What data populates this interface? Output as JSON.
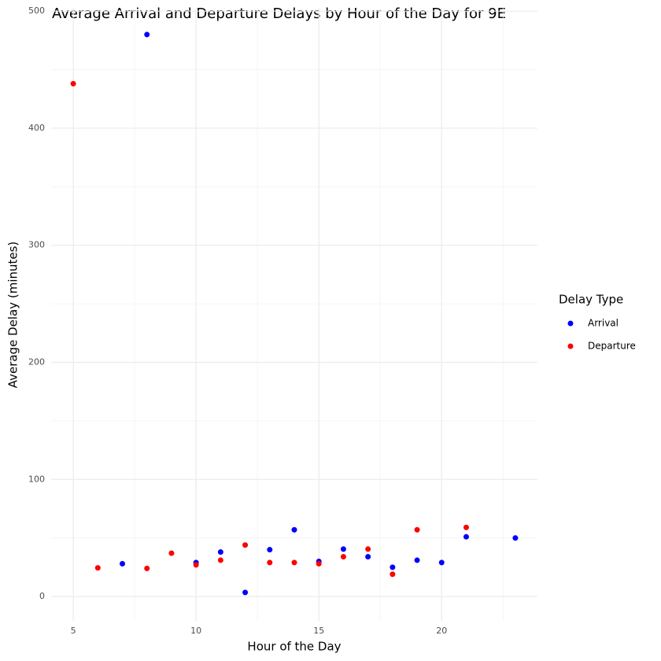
{
  "chart_data": {
    "type": "scatter",
    "title": "Average Arrival and Departure Delays by Hour of the Day for 9E",
    "x_label": "Hour of the Day",
    "y_label": "Average Delay (minutes)",
    "legend_title": "Delay Type",
    "legend_position": "right",
    "grid": true,
    "xlim": [
      4.1,
      23.9
    ],
    "xticks": [
      5,
      10,
      15,
      20
    ],
    "x_minor_ticks": [
      7.5,
      12.5,
      17.5,
      22.5
    ],
    "ylim": [
      -20.8,
      502.8
    ],
    "yticks": [
      0,
      100,
      200,
      300,
      400,
      500
    ],
    "y_minor_ticks": [
      50,
      150,
      250,
      350,
      450
    ],
    "series": [
      {
        "name": "Arrival",
        "color": "#0000ff",
        "x": [
          7,
          8,
          10,
          11,
          12,
          13,
          14,
          15,
          16,
          17,
          18,
          19,
          20,
          21,
          23
        ],
        "values": [
          28,
          480,
          29,
          38,
          3.5,
          40,
          57,
          30,
          40.5,
          34,
          25,
          31,
          29,
          51,
          50
        ]
      },
      {
        "name": "Departure",
        "color": "#ff0000",
        "x": [
          5,
          6,
          8,
          9,
          10,
          11,
          12,
          13,
          14,
          15,
          16,
          17,
          18,
          19,
          21
        ],
        "values": [
          438,
          24.5,
          24,
          37,
          27,
          31,
          44,
          29,
          29,
          28,
          34,
          40.5,
          19,
          57,
          59
        ]
      }
    ]
  }
}
